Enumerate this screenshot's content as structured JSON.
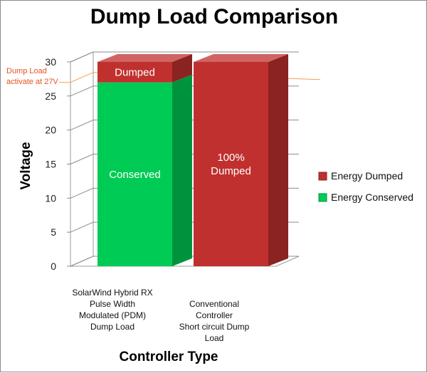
{
  "chart_data": {
    "type": "bar",
    "stacked": true,
    "title": "Dump Load Comparison",
    "xlabel": "Controller Type",
    "ylabel": "Voltage",
    "ylim": [
      0,
      30
    ],
    "yticks": [
      "0",
      "5",
      "10",
      "15",
      "20",
      "25",
      "30"
    ],
    "categories": [
      [
        "SolarWind Hybrid RX",
        "Pulse Width",
        "Modulated (PDM)",
        "Dump Load"
      ],
      [
        "Conventional",
        "Controller",
        "Short circuit Dump",
        "Load"
      ]
    ],
    "series": [
      {
        "name": "Energy Conserved",
        "values": [
          27,
          0
        ],
        "color": "#00cc55"
      },
      {
        "name": "Energy Dumped",
        "values": [
          3,
          30
        ],
        "color": "#c0302e"
      }
    ],
    "bar_labels": [
      {
        "bar": 0,
        "series": "Energy Dumped",
        "lines": [
          "Dumped"
        ]
      },
      {
        "bar": 0,
        "series": "Energy Conserved",
        "lines": [
          "Conserved"
        ]
      },
      {
        "bar": 1,
        "series": "Energy Dumped",
        "lines": [
          "100%",
          "Dumped"
        ]
      }
    ],
    "annotation": {
      "lines": [
        "Dump Load",
        "activate at 27V"
      ],
      "value": 27,
      "color": "#f0a050"
    },
    "legend_position": "right",
    "grid": true
  }
}
